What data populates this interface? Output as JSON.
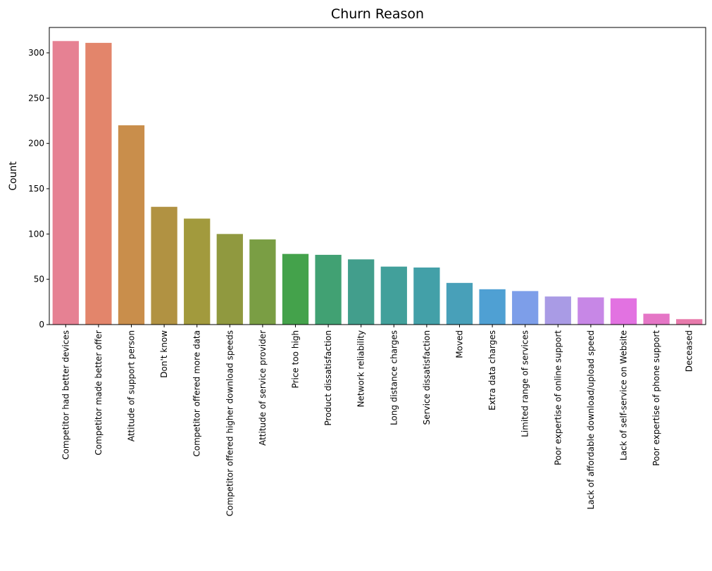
{
  "chart_data": {
    "type": "bar",
    "title": "Churn Reason",
    "xlabel": "",
    "ylabel": "Count",
    "ylim": [
      0,
      328
    ],
    "yticks": [
      0,
      50,
      100,
      150,
      200,
      250,
      300
    ],
    "grid": false,
    "categories": [
      "Competitor had better devices",
      "Competitor made better offer",
      "Attitude of support person",
      "Don't know",
      "Competitor offered more data",
      "Competitor offered higher download speeds",
      "Attitude of service provider",
      "Price too high",
      "Product dissatisfaction",
      "Network reliability",
      "Long distance charges",
      "Service dissatisfaction",
      "Moved",
      "Extra data charges",
      "Limited range of services",
      "Poor expertise of online support",
      "Lack of affordable download/upload speed",
      "Lack of self-service on Website",
      "Poor expertise of phone support",
      "Deceased"
    ],
    "values": [
      313,
      311,
      220,
      130,
      117,
      100,
      94,
      78,
      77,
      72,
      64,
      63,
      46,
      39,
      37,
      31,
      30,
      29,
      12,
      6
    ],
    "colors": [
      "#e68193",
      "#e3856b",
      "#c98e4b",
      "#b19242",
      "#a29a3d",
      "#90993f",
      "#7a9e44",
      "#44a24b",
      "#41a173",
      "#429e8c",
      "#42a09b",
      "#43a0a8",
      "#48a0b9",
      "#4fa0d3",
      "#7d9ee9",
      "#a99be5",
      "#c787e6",
      "#e272e1",
      "#e576c6",
      "#e77aab"
    ]
  }
}
